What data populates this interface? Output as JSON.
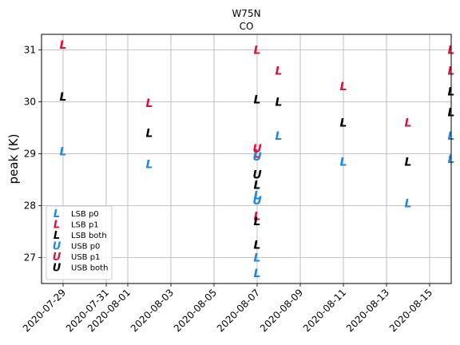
{
  "chart_data": {
    "type": "scatter",
    "title": "W75N",
    "subtitle": "CO",
    "xlabel": "",
    "ylabel": "peak (K)",
    "x_type": "date",
    "xlim": [
      "2020-07-28",
      "2020-08-16"
    ],
    "ylim": [
      26.5,
      31.3
    ],
    "x_ticks": [
      "2020-07-29",
      "2020-07-31",
      "2020-08-01",
      "2020-08-03",
      "2020-08-05",
      "2020-08-07",
      "2020-08-09",
      "2020-08-11",
      "2020-08-13",
      "2020-08-15"
    ],
    "y_ticks": [
      27,
      28,
      29,
      30,
      31
    ],
    "grid": true,
    "legend_position": "lower-left",
    "series": [
      {
        "name": "LSB p0",
        "marker": "L",
        "color": "#1e88e5",
        "points": [
          [
            "2020-07-29",
            29.05
          ],
          [
            "2020-08-02",
            28.8
          ],
          [
            "2020-08-07",
            28.2
          ],
          [
            "2020-08-07",
            27.0
          ],
          [
            "2020-08-07",
            26.7
          ],
          [
            "2020-08-08",
            29.35
          ],
          [
            "2020-08-11",
            28.85
          ],
          [
            "2020-08-14",
            28.05
          ],
          [
            "2020-08-16",
            29.35
          ],
          [
            "2020-08-16",
            28.9
          ]
        ]
      },
      {
        "name": "LSB p1",
        "marker": "L",
        "color": "#e0103c",
        "points": [
          [
            "2020-07-29",
            31.1
          ],
          [
            "2020-08-02",
            29.98
          ],
          [
            "2020-08-07",
            31.0
          ],
          [
            "2020-08-07",
            29.0
          ],
          [
            "2020-08-07",
            27.8
          ],
          [
            "2020-08-08",
            30.6
          ],
          [
            "2020-08-11",
            30.3
          ],
          [
            "2020-08-14",
            29.6
          ],
          [
            "2020-08-16",
            31.0
          ],
          [
            "2020-08-16",
            30.6
          ]
        ]
      },
      {
        "name": "LSB both",
        "marker": "L",
        "color": "#000000",
        "points": [
          [
            "2020-07-29",
            30.1
          ],
          [
            "2020-08-02",
            29.4
          ],
          [
            "2020-08-07",
            30.05
          ],
          [
            "2020-08-07",
            28.4
          ],
          [
            "2020-08-07",
            27.7
          ],
          [
            "2020-08-07",
            27.25
          ],
          [
            "2020-08-08",
            30.0
          ],
          [
            "2020-08-11",
            29.6
          ],
          [
            "2020-08-14",
            28.85
          ],
          [
            "2020-08-16",
            30.2
          ],
          [
            "2020-08-16",
            29.8
          ]
        ]
      },
      {
        "name": "USB p0",
        "marker": "U",
        "color": "#1e88e5",
        "points": [
          [
            "2020-08-07",
            28.1
          ],
          [
            "2020-08-07",
            28.95
          ]
        ]
      },
      {
        "name": "USB p1",
        "marker": "U",
        "color": "#e0103c",
        "points": [
          [
            "2020-08-07",
            29.1
          ]
        ]
      },
      {
        "name": "USB both",
        "marker": "U",
        "color": "#000000",
        "points": [
          [
            "2020-08-07",
            28.6
          ]
        ]
      }
    ]
  }
}
